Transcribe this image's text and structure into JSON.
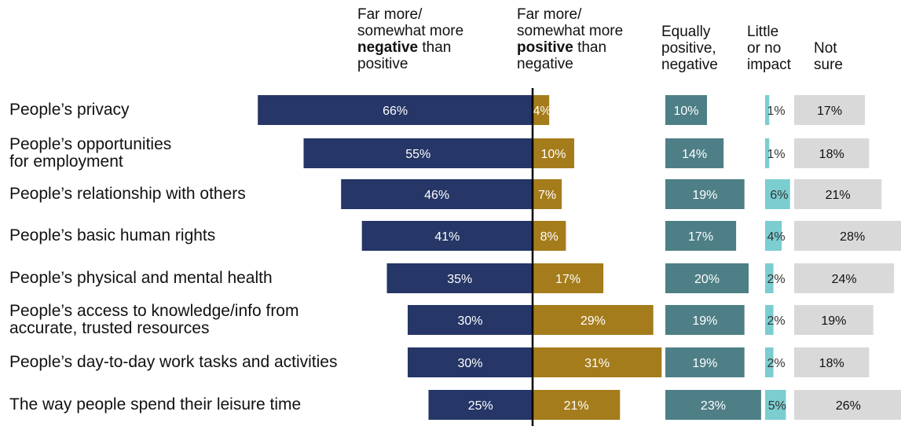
{
  "chart_data": {
    "type": "bar",
    "orientation": "horizontal",
    "stacking": "diverging",
    "unit": "%",
    "columns": [
      {
        "id": "neg",
        "parts": [
          "Far more/",
          "somewhat more",
          "",
          "negative",
          " than",
          "positive"
        ]
      },
      {
        "id": "pos",
        "parts": [
          "Far more/",
          "somewhat more",
          "",
          "positive",
          " than",
          "negative"
        ]
      },
      {
        "id": "equal",
        "parts": [
          "Equally",
          "positive,",
          "negative"
        ]
      },
      {
        "id": "little",
        "parts": [
          "Little",
          "or no",
          "impact"
        ]
      },
      {
        "id": "notsure",
        "parts": [
          "Not",
          "sure"
        ]
      }
    ],
    "categories": [
      [
        "People’s privacy"
      ],
      [
        "People’s opportunities",
        "for employment"
      ],
      [
        "People’s relationship with others"
      ],
      [
        "People’s basic human rights"
      ],
      [
        "People’s physical and mental health"
      ],
      [
        "People’s access to knowledge/info from",
        "accurate, trusted resources"
      ],
      [
        "People’s day-to-day work tasks and activities"
      ],
      [
        "The way people spend their leisure time"
      ]
    ],
    "series": [
      {
        "id": "neg",
        "color": "#253667",
        "label_color": "#ffffff",
        "values": [
          66,
          55,
          46,
          41,
          35,
          30,
          30,
          25
        ]
      },
      {
        "id": "pos",
        "color": "#a57c1b",
        "label_color": "#ffffff",
        "values": [
          4,
          10,
          7,
          8,
          17,
          29,
          31,
          21
        ]
      },
      {
        "id": "equal",
        "color": "#4e7f86",
        "label_color": "#ffffff",
        "values": [
          10,
          14,
          19,
          17,
          20,
          19,
          19,
          23
        ]
      },
      {
        "id": "little",
        "color": "#7ccdd0",
        "label_color": "#333333",
        "values": [
          1,
          1,
          6,
          4,
          2,
          2,
          2,
          5
        ]
      },
      {
        "id": "notsure",
        "color": "#d9d9d9",
        "label_color": "#111111",
        "values": [
          17,
          18,
          21,
          28,
          24,
          19,
          18,
          26
        ]
      }
    ],
    "divider_color": "#000000"
  }
}
